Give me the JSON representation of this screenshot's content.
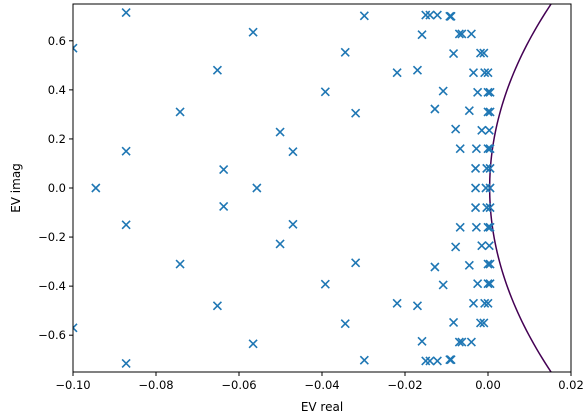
{
  "chart_data": {
    "type": "scatter",
    "title": "",
    "xlabel": "EV real",
    "ylabel": "EV imag",
    "xlim": [
      -0.1,
      0.02
    ],
    "ylim": [
      -0.75,
      0.75
    ],
    "grid": false,
    "x_ticks": [
      -0.1,
      -0.08,
      -0.06,
      -0.04,
      -0.02,
      0.0,
      0.02
    ],
    "x_tick_labels": [
      "−0.10",
      "−0.08",
      "−0.06",
      "−0.04",
      "−0.02",
      "0.00",
      "0.02"
    ],
    "y_ticks": [
      -0.6,
      -0.4,
      -0.2,
      0.0,
      0.2,
      0.4,
      0.6
    ],
    "y_tick_labels": [
      "−0.6",
      "−0.4",
      "−0.2",
      "0.0",
      "0.2",
      "0.4",
      "0.6"
    ],
    "colors": {
      "marker": "#1f77b4",
      "curve": "#440154"
    },
    "series": [
      {
        "marker": "x",
        "points": [
          [
            -0.1,
            0.57
          ],
          [
            -0.1,
            -0.57
          ],
          [
            -0.0872,
            0.715
          ],
          [
            -0.0872,
            -0.715
          ],
          [
            -0.0872,
            0.15
          ],
          [
            -0.0872,
            -0.15
          ],
          [
            -0.0945,
            0.0
          ],
          [
            -0.0742,
            0.31
          ],
          [
            -0.0742,
            -0.31
          ],
          [
            -0.0652,
            0.48
          ],
          [
            -0.0652,
            -0.48
          ],
          [
            -0.0637,
            0.075
          ],
          [
            -0.0637,
            -0.075
          ],
          [
            -0.0566,
            0.635
          ],
          [
            -0.0566,
            -0.635
          ],
          [
            -0.0557,
            0.0
          ],
          [
            -0.0501,
            0.228
          ],
          [
            -0.0501,
            -0.228
          ],
          [
            -0.047,
            0.148
          ],
          [
            -0.047,
            -0.148
          ],
          [
            -0.0392,
            0.392
          ],
          [
            -0.0392,
            -0.392
          ],
          [
            -0.0344,
            0.553
          ],
          [
            -0.0344,
            -0.553
          ],
          [
            -0.0319,
            0.305
          ],
          [
            -0.0319,
            -0.305
          ],
          [
            -0.0298,
            0.702
          ],
          [
            -0.0298,
            -0.702
          ],
          [
            -0.0219,
            0.47
          ],
          [
            -0.0219,
            -0.47
          ],
          [
            -0.017,
            0.48
          ],
          [
            -0.017,
            -0.48
          ],
          [
            -0.0159,
            0.625
          ],
          [
            -0.0159,
            -0.625
          ],
          [
            -0.015,
            0.705
          ],
          [
            -0.015,
            -0.705
          ],
          [
            -0.014,
            0.705
          ],
          [
            -0.014,
            -0.705
          ],
          [
            -0.0122,
            0.705
          ],
          [
            -0.0122,
            -0.705
          ],
          [
            -0.0128,
            0.322
          ],
          [
            -0.0128,
            -0.322
          ],
          [
            -0.0108,
            0.395
          ],
          [
            -0.0108,
            -0.395
          ],
          [
            -0.0092,
            0.7
          ],
          [
            -0.0092,
            -0.7
          ],
          [
            -0.0089,
            0.7
          ],
          [
            -0.0089,
            -0.7
          ],
          [
            -0.0083,
            0.548
          ],
          [
            -0.0083,
            -0.548
          ],
          [
            -0.0078,
            0.24
          ],
          [
            -0.0078,
            -0.24
          ],
          [
            -0.0069,
            0.628
          ],
          [
            -0.0069,
            -0.628
          ],
          [
            -0.0063,
            0.628
          ],
          [
            -0.0063,
            -0.628
          ],
          [
            -0.0067,
            0.16
          ],
          [
            -0.0067,
            -0.16
          ],
          [
            -0.0045,
            0.315
          ],
          [
            -0.0045,
            -0.315
          ],
          [
            -0.004,
            0.628
          ],
          [
            -0.004,
            -0.628
          ],
          [
            -0.0035,
            0.47
          ],
          [
            -0.0035,
            -0.47
          ],
          [
            -0.003,
            0.08
          ],
          [
            -0.003,
            -0.08
          ],
          [
            -0.003,
            0.0
          ],
          [
            -0.0028,
            0.16
          ],
          [
            -0.0028,
            -0.16
          ],
          [
            -0.0025,
            0.39
          ],
          [
            -0.0025,
            -0.39
          ],
          [
            -0.0018,
            0.55
          ],
          [
            -0.0018,
            -0.55
          ],
          [
            -0.0015,
            0.235
          ],
          [
            -0.0015,
            -0.235
          ],
          [
            -0.001,
            0.55
          ],
          [
            -0.001,
            -0.55
          ],
          [
            -0.0008,
            0.47
          ],
          [
            -0.0008,
            -0.47
          ],
          [
            -0.0005,
            0.0
          ],
          [
            -0.0003,
            0.08
          ],
          [
            -0.0003,
            -0.08
          ],
          [
            0.0,
            0.39
          ],
          [
            0.0,
            -0.39
          ],
          [
            0.0,
            0.16
          ],
          [
            0.0,
            -0.16
          ],
          [
            0.0,
            0.31
          ],
          [
            0.0,
            -0.31
          ],
          [
            0.0,
            0.47
          ],
          [
            0.0,
            -0.47
          ],
          [
            0.0003,
            0.235
          ],
          [
            0.0003,
            -0.235
          ],
          [
            0.0005,
            0.0
          ],
          [
            0.0005,
            0.08
          ],
          [
            0.0005,
            -0.08
          ],
          [
            0.0005,
            0.39
          ],
          [
            0.0005,
            -0.39
          ],
          [
            0.0005,
            0.16
          ],
          [
            0.0005,
            -0.16
          ],
          [
            0.0005,
            0.31
          ],
          [
            0.0005,
            -0.31
          ]
        ]
      }
    ],
    "curve": {
      "type": "line",
      "a": 0.0004,
      "b": 0.0148,
      "min_y": -0.75,
      "max_y": 0.75
    }
  }
}
